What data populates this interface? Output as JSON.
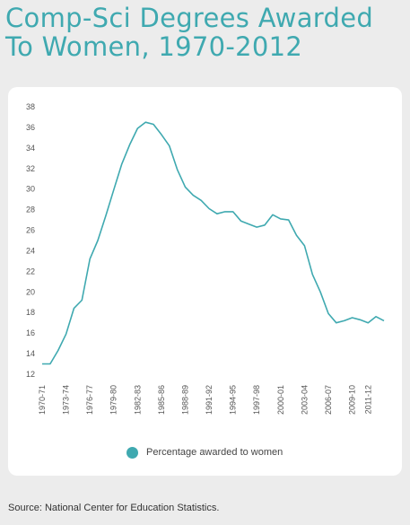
{
  "title": "Comp-Sci Degrees Awarded To Women, 1970-2012",
  "source": "Source: National Center for Education Statistics.",
  "colors": {
    "accent": "#3fa9b0",
    "background": "#ececec",
    "card": "#ffffff"
  },
  "chart_data": {
    "type": "line",
    "title": "Comp-Sci Degrees Awarded To Women, 1970-2012",
    "xlabel": "",
    "ylabel": "",
    "ylim": [
      12,
      38
    ],
    "yticks": [
      12,
      14,
      16,
      18,
      20,
      22,
      24,
      26,
      28,
      30,
      32,
      34,
      36,
      38
    ],
    "grid": false,
    "legend": "bottom-center",
    "x": [
      "1970-71",
      "1971-72",
      "1972-73",
      "1973-74",
      "1974-75",
      "1975-76",
      "1976-77",
      "1977-78",
      "1978-79",
      "1979-80",
      "1980-81",
      "1981-82",
      "1982-83",
      "1983-84",
      "1984-85",
      "1985-86",
      "1986-87",
      "1987-88",
      "1988-89",
      "1989-90",
      "1990-91",
      "1991-92",
      "1992-93",
      "1993-94",
      "1994-95",
      "1995-96",
      "1996-97",
      "1997-98",
      "1998-99",
      "1999-00",
      "2000-01",
      "2001-02",
      "2002-03",
      "2003-04",
      "2004-05",
      "2005-06",
      "2006-07",
      "2007-08",
      "2008-09",
      "2009-10",
      "2010-11",
      "2011-12",
      "2012-13",
      "2013-14"
    ],
    "xtick_labels": [
      "1970-71",
      "1973-74",
      "1976-77",
      "1979-80",
      "1982-83",
      "1985-86",
      "1988-89",
      "1991-92",
      "1994-95",
      "1997-98",
      "2000-01",
      "2003-04",
      "2006-07",
      "2009-10",
      "2011-12"
    ],
    "series": [
      {
        "name": "Percentage awarded to women",
        "color": "#3fa9b0",
        "values": [
          13.0,
          13.0,
          14.3,
          15.9,
          18.4,
          19.2,
          23.2,
          25.0,
          27.4,
          29.9,
          32.4,
          34.3,
          35.9,
          36.5,
          36.3,
          35.3,
          34.2,
          31.9,
          30.2,
          29.4,
          28.9,
          28.1,
          27.6,
          27.8,
          27.8,
          26.9,
          26.6,
          26.3,
          26.5,
          27.5,
          27.1,
          27.0,
          25.5,
          24.5,
          21.7,
          20.0,
          17.9,
          17.0,
          17.2,
          17.5,
          17.3,
          17.0,
          17.6,
          17.2
        ]
      }
    ]
  }
}
